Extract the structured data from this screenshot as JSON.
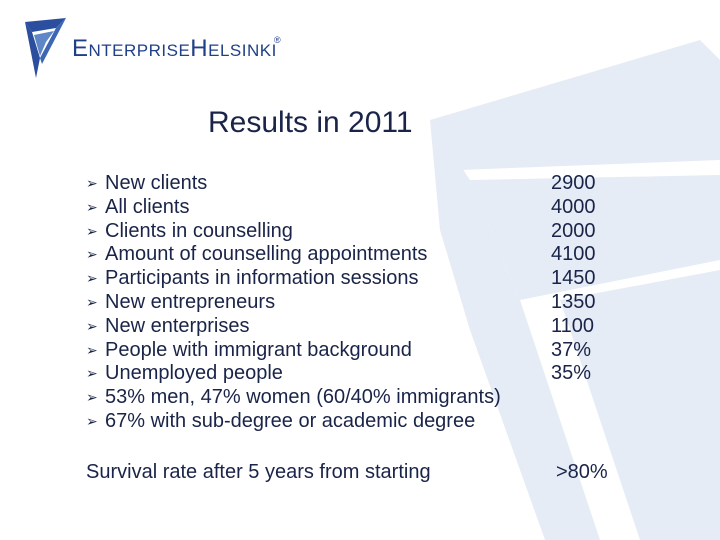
{
  "logo": {
    "text": "EnterpriseHelsinki",
    "registered": "®"
  },
  "title": "Results in 2011",
  "bullet_glyph": "➢",
  "results": [
    {
      "label": "New clients",
      "value": "2900"
    },
    {
      "label": "All clients",
      "value": "4000"
    },
    {
      "label": "Clients in counselling",
      "value": "2000"
    },
    {
      "label": "Amount of counselling appointments",
      "value": "4100"
    },
    {
      "label": "Participants in information sessions",
      "value": "1450"
    },
    {
      "label": "New entrepreneurs",
      "value": "1350"
    },
    {
      "label": "New enterprises",
      "value": "1100"
    },
    {
      "label": "People with immigrant background",
      "value": "37%"
    },
    {
      "label": "Unemployed people",
      "value": "35%"
    },
    {
      "label": "53% men, 47% women (60/40% immigrants)",
      "value": ""
    },
    {
      "label": "67% with sub-degree or academic degree",
      "value": ""
    }
  ],
  "survival": {
    "label": "Survival rate after 5 years from starting",
    "value": ">80%"
  },
  "colors": {
    "text": "#1a2448",
    "brand": "#1f3f87",
    "watermark": "#e6ecf5"
  }
}
